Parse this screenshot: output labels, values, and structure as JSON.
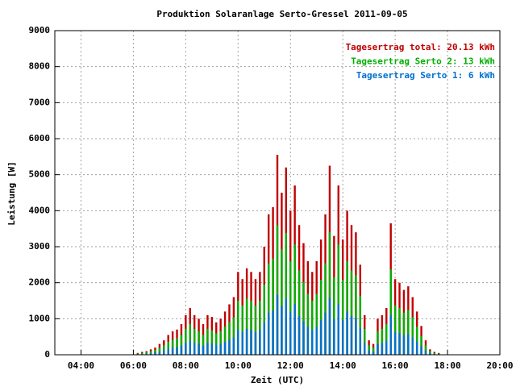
{
  "chart_data": {
    "type": "bar",
    "title": "Produktion Solaranlage Serto-Gressel 2011-09-05",
    "x_label": "Zeit (UTC)",
    "y_label": "Leistung [W]",
    "categories": [
      "06:10",
      "06:20",
      "06:30",
      "06:40",
      "06:50",
      "07:00",
      "07:10",
      "07:20",
      "07:30",
      "07:40",
      "07:50",
      "08:00",
      "08:10",
      "08:20",
      "08:30",
      "08:40",
      "08:50",
      "09:00",
      "09:10",
      "09:20",
      "09:30",
      "09:40",
      "09:50",
      "10:00",
      "10:10",
      "10:20",
      "10:30",
      "10:40",
      "10:50",
      "11:00",
      "11:10",
      "11:20",
      "11:30",
      "11:40",
      "11:50",
      "12:00",
      "12:10",
      "12:20",
      "12:30",
      "12:40",
      "12:50",
      "13:00",
      "13:10",
      "13:20",
      "13:30",
      "13:40",
      "13:50",
      "14:00",
      "14:10",
      "14:20",
      "14:30",
      "14:40",
      "14:50",
      "15:00",
      "15:10",
      "15:20",
      "15:30",
      "15:40",
      "15:50",
      "16:00",
      "16:10",
      "16:20",
      "16:30",
      "16:40",
      "16:50",
      "17:00",
      "17:10",
      "17:20",
      "17:30",
      "17:40"
    ],
    "series": [
      {
        "name": "Tagesertrag total: 20.13 kWh",
        "color": "#c00000",
        "values": [
          50,
          80,
          100,
          150,
          200,
          300,
          400,
          550,
          650,
          700,
          850,
          1100,
          1300,
          1100,
          1000,
          850,
          1100,
          1050,
          900,
          1000,
          1200,
          1400,
          1600,
          2300,
          2100,
          2400,
          2300,
          2100,
          2300,
          3000,
          3900,
          4100,
          5550,
          4500,
          5200,
          4000,
          4700,
          3600,
          3100,
          2600,
          2300,
          2600,
          3200,
          3900,
          5250,
          3300,
          4700,
          3200,
          4000,
          3600,
          3400,
          2500,
          1100,
          400,
          300,
          1000,
          1100,
          1300,
          3650,
          2100,
          2000,
          1800,
          1900,
          1600,
          1200,
          800,
          400,
          150,
          80,
          50
        ]
      },
      {
        "name": "Tagesertrag Serto 2: 13 kWh",
        "color": "#00b000",
        "values": [
          30,
          50,
          70,
          100,
          130,
          200,
          260,
          360,
          420,
          460,
          550,
          720,
          850,
          720,
          650,
          550,
          720,
          680,
          590,
          650,
          780,
          910,
          1040,
          1500,
          1370,
          1560,
          1500,
          1370,
          1500,
          1950,
          2540,
          2670,
          3600,
          2930,
          3380,
          2600,
          3060,
          2340,
          2020,
          1690,
          1500,
          1690,
          2080,
          2540,
          3410,
          2150,
          3060,
          2080,
          2600,
          2340,
          2210,
          1630,
          720,
          260,
          200,
          650,
          720,
          850,
          2370,
          1370,
          1300,
          1170,
          1240,
          1040,
          780,
          520,
          260,
          100,
          50,
          30
        ]
      },
      {
        "name": "Tagesertrag Serto 1: 6 kWh",
        "color": "#0070d0",
        "values": [
          15,
          25,
          30,
          45,
          60,
          90,
          120,
          165,
          195,
          210,
          255,
          330,
          390,
          330,
          300,
          255,
          330,
          315,
          270,
          300,
          360,
          420,
          480,
          690,
          630,
          720,
          690,
          630,
          690,
          900,
          1170,
          1230,
          1665,
          1350,
          1560,
          1200,
          1410,
          1080,
          930,
          780,
          690,
          780,
          960,
          1170,
          1575,
          990,
          1410,
          960,
          1200,
          1080,
          1020,
          750,
          330,
          120,
          90,
          300,
          330,
          390,
          1095,
          630,
          600,
          540,
          570,
          480,
          360,
          240,
          120,
          45,
          25,
          15
        ]
      }
    ],
    "xlim": [
      "03:00",
      "20:00"
    ],
    "xticks": [
      "04:00",
      "06:00",
      "08:00",
      "10:00",
      "12:00",
      "14:00",
      "16:00",
      "18:00",
      "20:00"
    ],
    "ylim": [
      0,
      9000
    ],
    "yticks": [
      0,
      1000,
      2000,
      3000,
      4000,
      5000,
      6000,
      7000,
      8000,
      9000
    ],
    "grid": true,
    "legend": "upper right"
  }
}
